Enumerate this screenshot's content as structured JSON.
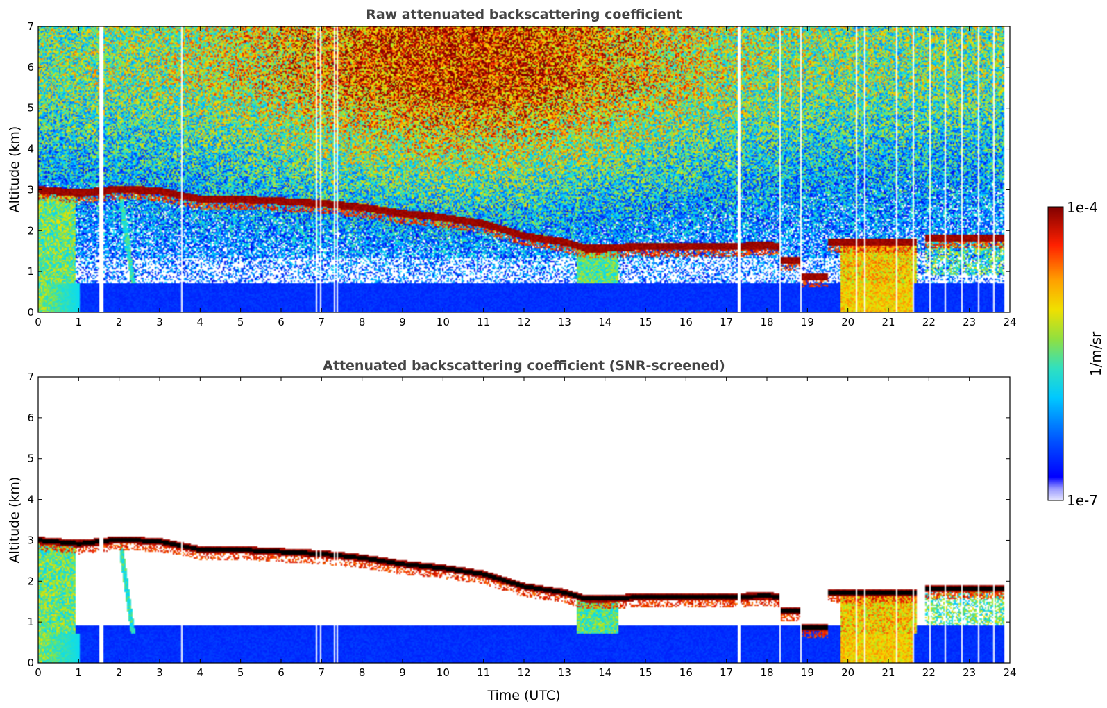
{
  "chart_data": [
    {
      "type": "heatmap",
      "title": "Raw attenuated backscattering coefficient",
      "xlabel": "",
      "ylabel": "Altitude (km)",
      "xlim": [
        0,
        24
      ],
      "ylim": [
        0,
        7
      ],
      "xticks": [
        "0",
        "1",
        "2",
        "3",
        "4",
        "5",
        "6",
        "7",
        "8",
        "9",
        "10",
        "11",
        "12",
        "13",
        "14",
        "15",
        "16",
        "17",
        "18",
        "19",
        "20",
        "21",
        "22",
        "23",
        "24"
      ],
      "yticks": [
        "0",
        "1",
        "2",
        "3",
        "4",
        "5",
        "6",
        "7"
      ],
      "screened": false,
      "cloud_layer": {
        "time_utc": [
          0,
          1,
          2,
          3,
          4,
          5,
          6,
          7,
          8,
          9,
          10,
          11,
          12,
          13,
          13.5,
          14,
          15,
          16,
          17,
          18,
          18.3
        ],
        "altitude_km": [
          2.98,
          2.9,
          3.0,
          2.95,
          2.75,
          2.75,
          2.7,
          2.65,
          2.55,
          2.4,
          2.3,
          2.15,
          1.85,
          1.7,
          1.55,
          1.55,
          1.6,
          1.6,
          1.6,
          1.62,
          1.6
        ]
      }
    },
    {
      "type": "heatmap",
      "title": "Attenuated backscattering coefficient (SNR-screened)",
      "xlabel": "Time (UTC)",
      "ylabel": "Altitude (km)",
      "xlim": [
        0,
        24
      ],
      "ylim": [
        0,
        7
      ],
      "xticks": [
        "0",
        "1",
        "2",
        "3",
        "4",
        "5",
        "6",
        "7",
        "8",
        "9",
        "10",
        "11",
        "12",
        "13",
        "14",
        "15",
        "16",
        "17",
        "18",
        "19",
        "20",
        "21",
        "22",
        "23",
        "24"
      ],
      "yticks": [
        "0",
        "1",
        "2",
        "3",
        "4",
        "5",
        "6",
        "7"
      ],
      "screened": true
    }
  ],
  "colorbar": {
    "max_label": "1e-4",
    "min_label": "1e-7",
    "unit_label": "1/m/sr",
    "scale": "log",
    "colormap": "jet"
  }
}
